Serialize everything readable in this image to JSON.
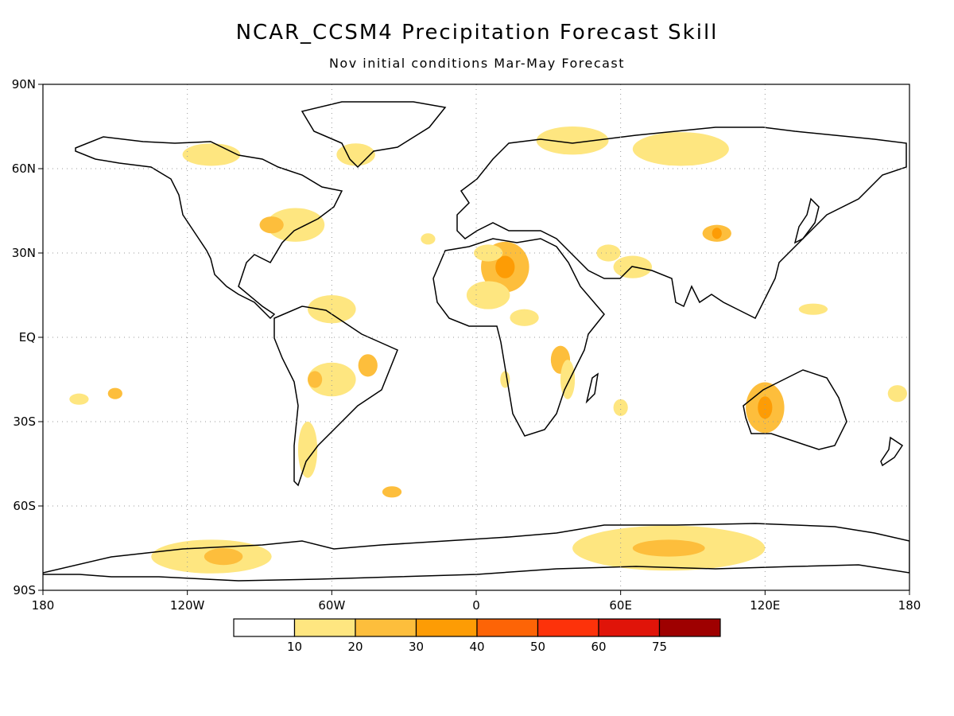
{
  "header": {
    "title": "NCAR_CCSM4 Precipitation Forecast Skill",
    "subtitle": "Nov initial conditions  Mar-May Forecast"
  },
  "chart_data": {
    "type": "heatmap",
    "projection": "equirectangular",
    "grid": true,
    "x_range": [
      -180,
      180
    ],
    "y_range": [
      -90,
      90
    ],
    "x_ticks": [
      {
        "value": -180,
        "label": "180"
      },
      {
        "value": -120,
        "label": "120W"
      },
      {
        "value": -60,
        "label": "60W"
      },
      {
        "value": 0,
        "label": "0"
      },
      {
        "value": 60,
        "label": "60E"
      },
      {
        "value": 120,
        "label": "120E"
      },
      {
        "value": 180,
        "label": "180"
      }
    ],
    "y_ticks": [
      {
        "value": 90,
        "label": "90N"
      },
      {
        "value": 60,
        "label": "60N"
      },
      {
        "value": 30,
        "label": "30N"
      },
      {
        "value": 0,
        "label": "EQ"
      },
      {
        "value": -30,
        "label": "30S"
      },
      {
        "value": -60,
        "label": "60S"
      },
      {
        "value": -90,
        "label": "90S"
      }
    ],
    "colorbar": {
      "colors": [
        "#ffffff",
        "#fee680",
        "#fdbe3c",
        "#fd9c05",
        "#fd6406",
        "#fd320a",
        "#e01409",
        "#9e0000"
      ],
      "labels": [
        "10",
        "20",
        "30",
        "40",
        "50",
        "60",
        "75"
      ]
    },
    "regions": [
      {
        "lon": 12,
        "lat": 25,
        "rx": 10,
        "ry": 9,
        "level": 2
      },
      {
        "lon": 12,
        "lat": 25,
        "rx": 4,
        "ry": 4,
        "level": 3
      },
      {
        "lon": 5,
        "lat": 15,
        "rx": 9,
        "ry": 5,
        "level": 1
      },
      {
        "lon": 20,
        "lat": 7,
        "rx": 6,
        "ry": 3,
        "level": 1
      },
      {
        "lon": 35,
        "lat": -8,
        "rx": 4,
        "ry": 5,
        "level": 2
      },
      {
        "lon": 38,
        "lat": -15,
        "rx": 3,
        "ry": 7,
        "level": 1
      },
      {
        "lon": 12,
        "lat": -15,
        "rx": 2,
        "ry": 3,
        "level": 1
      },
      {
        "lon": 5,
        "lat": 30,
        "rx": 6,
        "ry": 3,
        "level": 1
      },
      {
        "lon": -75,
        "lat": 40,
        "rx": 12,
        "ry": 6,
        "level": 1
      },
      {
        "lon": -85,
        "lat": 40,
        "rx": 5,
        "ry": 3,
        "level": 2
      },
      {
        "lon": -60,
        "lat": -15,
        "rx": 10,
        "ry": 6,
        "level": 1
      },
      {
        "lon": -67,
        "lat": -15,
        "rx": 3,
        "ry": 3,
        "level": 2
      },
      {
        "lon": -45,
        "lat": -10,
        "rx": 4,
        "ry": 4,
        "level": 2
      },
      {
        "lon": -70,
        "lat": -40,
        "rx": 4,
        "ry": 10,
        "level": 1
      },
      {
        "lon": -60,
        "lat": 10,
        "rx": 10,
        "ry": 5,
        "level": 1
      },
      {
        "lon": 120,
        "lat": -25,
        "rx": 8,
        "ry": 9,
        "level": 2
      },
      {
        "lon": 120,
        "lat": -25,
        "rx": 3,
        "ry": 4,
        "level": 3
      },
      {
        "lon": 140,
        "lat": 10,
        "rx": 6,
        "ry": 2,
        "level": 1
      },
      {
        "lon": 100,
        "lat": 37,
        "rx": 6,
        "ry": 3,
        "level": 2
      },
      {
        "lon": 100,
        "lat": 37,
        "rx": 2,
        "ry": 2,
        "level": 3
      },
      {
        "lon": 85,
        "lat": 67,
        "rx": 20,
        "ry": 6,
        "level": 1
      },
      {
        "lon": 40,
        "lat": 70,
        "rx": 15,
        "ry": 5,
        "level": 1
      },
      {
        "lon": -110,
        "lat": 65,
        "rx": 12,
        "ry": 4,
        "level": 1
      },
      {
        "lon": -50,
        "lat": 65,
        "rx": 8,
        "ry": 4,
        "level": 1
      },
      {
        "lon": 55,
        "lat": 30,
        "rx": 5,
        "ry": 3,
        "level": 1
      },
      {
        "lon": 65,
        "lat": 25,
        "rx": 8,
        "ry": 4,
        "level": 1
      },
      {
        "lon": -165,
        "lat": -22,
        "rx": 4,
        "ry": 2,
        "level": 1
      },
      {
        "lon": -150,
        "lat": -20,
        "rx": 3,
        "ry": 2,
        "level": 2
      },
      {
        "lon": 175,
        "lat": -20,
        "rx": 4,
        "ry": 3,
        "level": 1
      },
      {
        "lon": 80,
        "lat": -75,
        "rx": 40,
        "ry": 8,
        "level": 1
      },
      {
        "lon": 80,
        "lat": -75,
        "rx": 15,
        "ry": 3,
        "level": 2
      },
      {
        "lon": -110,
        "lat": -78,
        "rx": 25,
        "ry": 6,
        "level": 1
      },
      {
        "lon": -105,
        "lat": -78,
        "rx": 8,
        "ry": 3,
        "level": 2
      },
      {
        "lon": -35,
        "lat": -55,
        "rx": 4,
        "ry": 2,
        "level": 2
      },
      {
        "lon": -20,
        "lat": 35,
        "rx": 3,
        "ry": 2,
        "level": 1
      },
      {
        "lon": 60,
        "lat": -25,
        "rx": 3,
        "ry": 3,
        "level": 1
      }
    ]
  }
}
